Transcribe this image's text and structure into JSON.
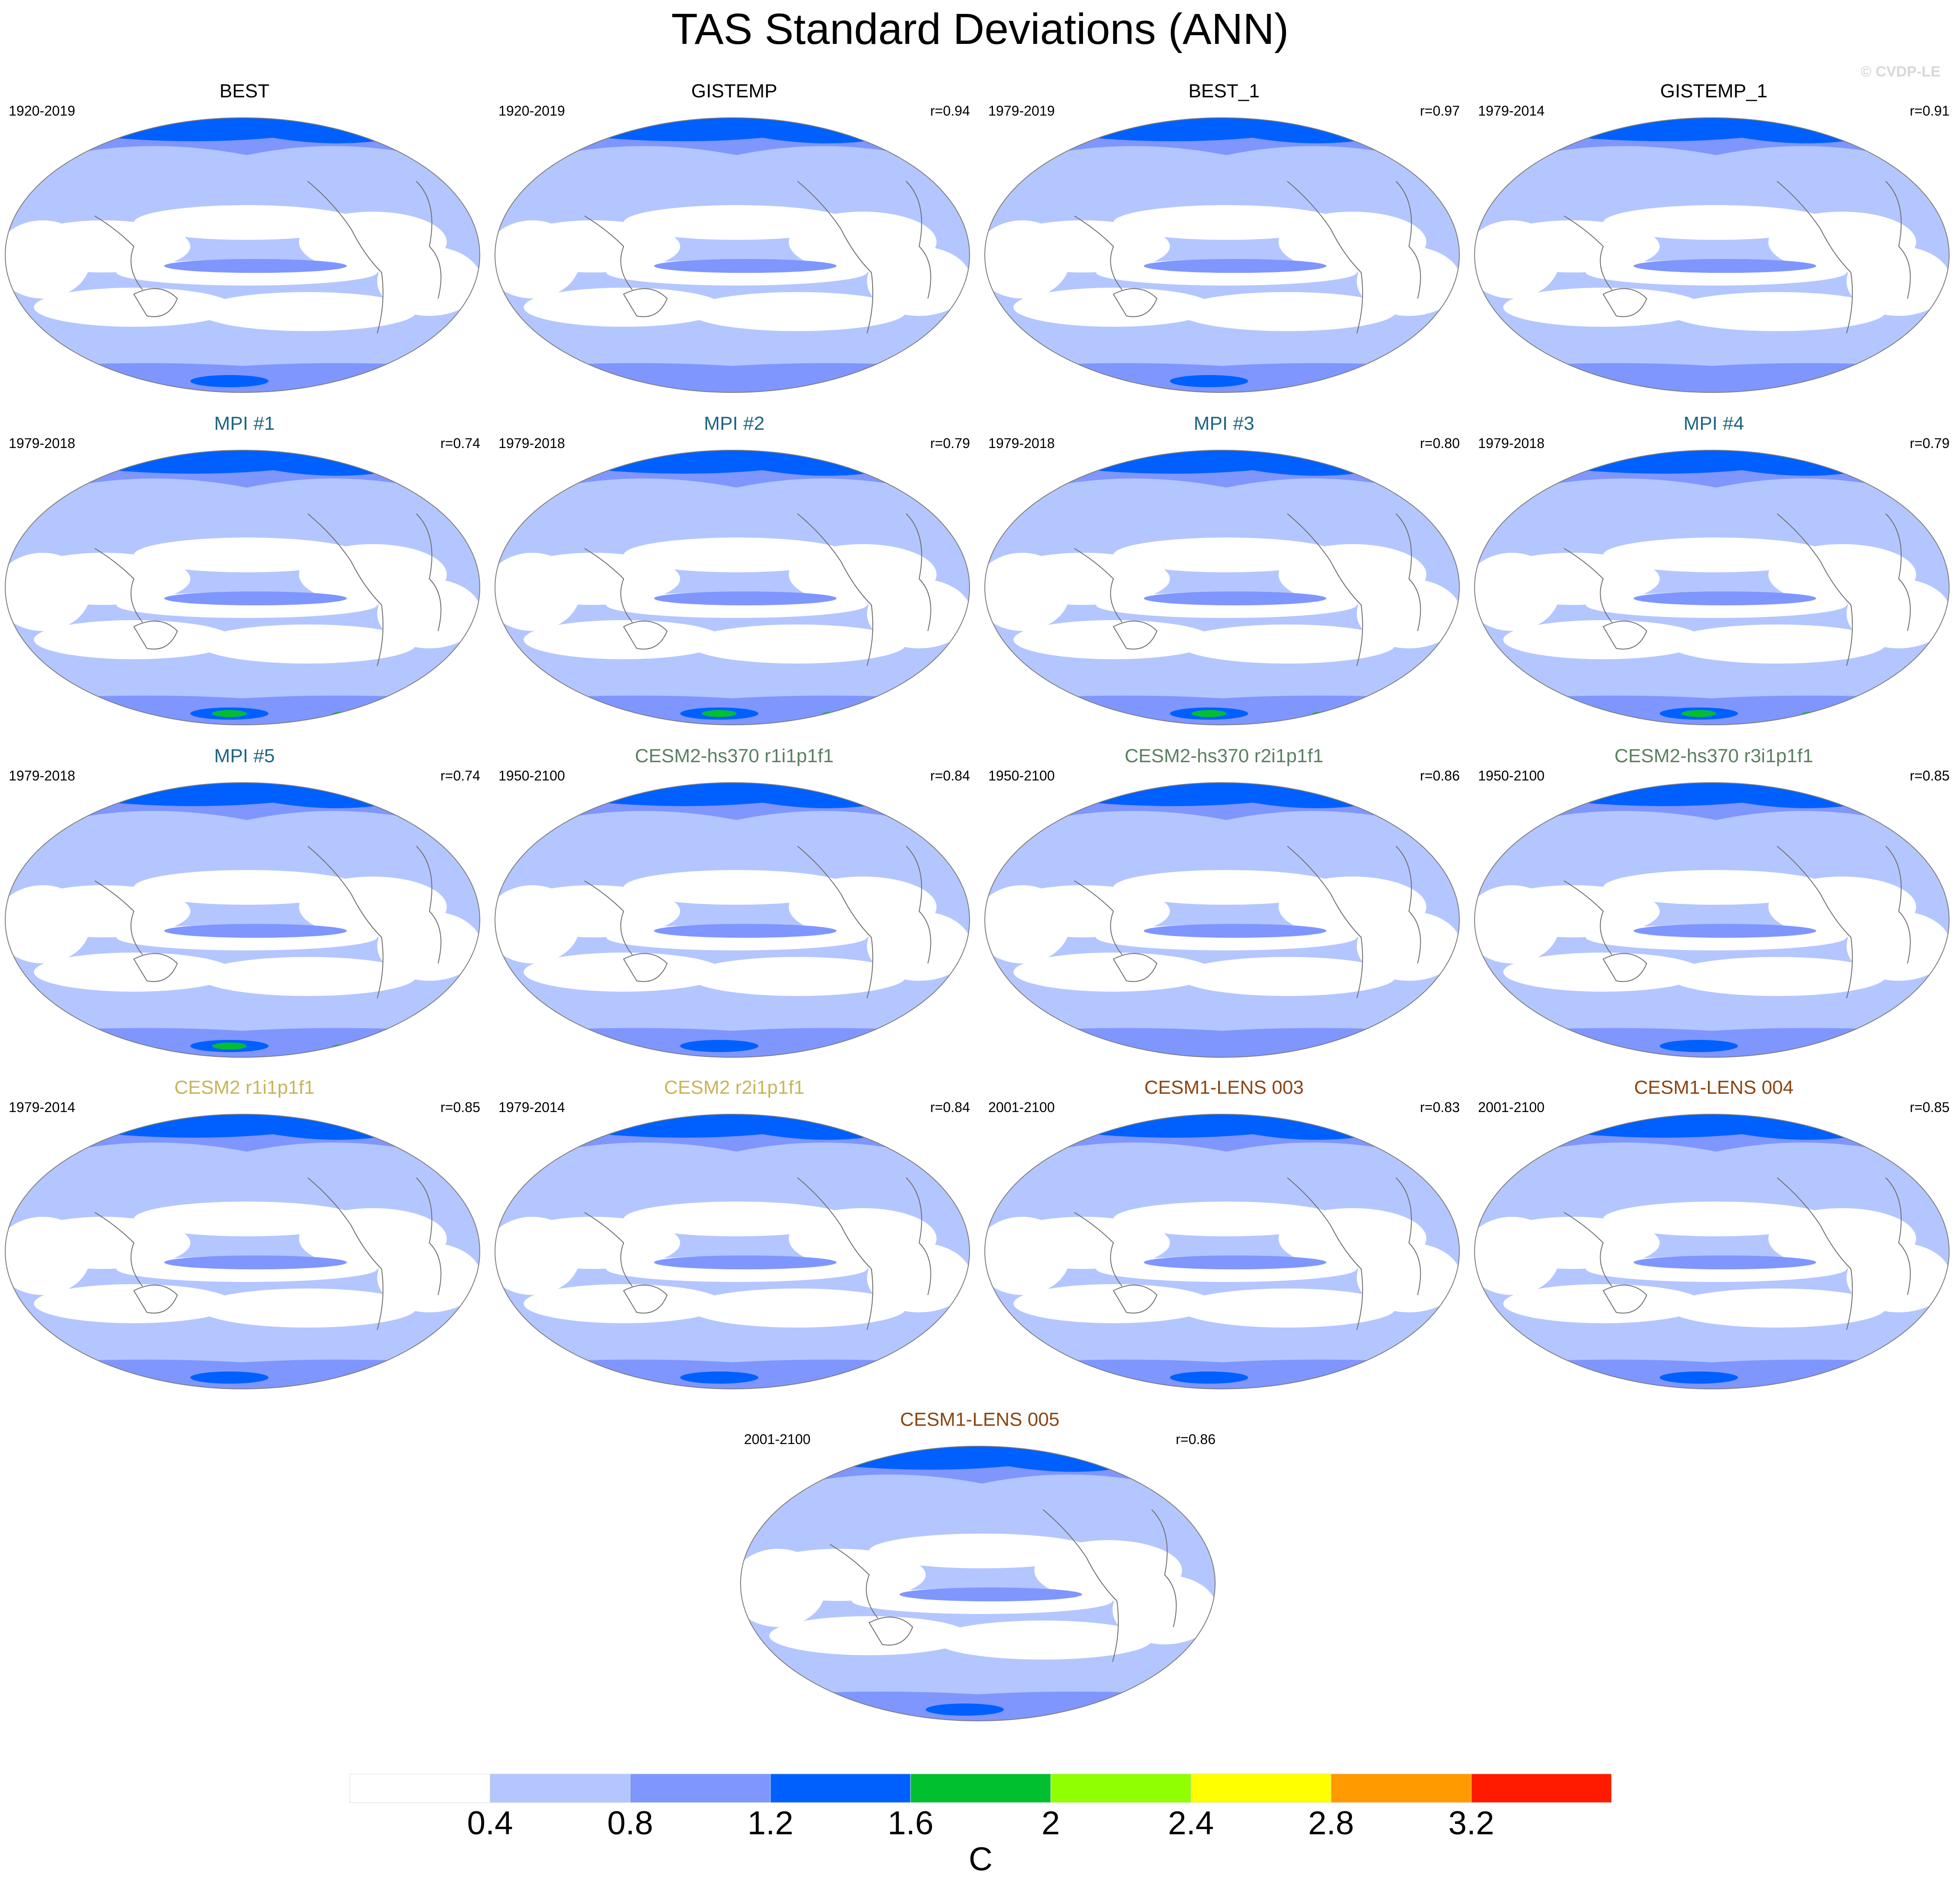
{
  "figure": {
    "title": "TAS Standard Deviations (ANN)",
    "watermark": "© CVDP-LE"
  },
  "colors": {
    "obs_title": "#000000",
    "mpi_title": "#1d6585",
    "cesm2_hs370_title": "#5a8062",
    "cesm2_title": "#c9b45a",
    "cesm1_lens_title": "#8b4513",
    "land_outline": "#6e6e6e",
    "map_border": "#7d7d7d"
  },
  "chart_data": {
    "type": "heatmap",
    "variable": "TAS",
    "statistic": "Standard Deviations",
    "season": "ANN",
    "projection": "Robinson",
    "colorbar": {
      "unit": "C",
      "levels": [
        0.4,
        0.8,
        1.2,
        1.6,
        2,
        2.4,
        2.8,
        3.2
      ],
      "tick_labels": [
        "0.4",
        "0.8",
        "1.2",
        "1.6",
        "2",
        "2.4",
        "2.8",
        "3.2"
      ],
      "colors": [
        "#ffffff",
        "#b4c6ff",
        "#7f96ff",
        "#0060ff",
        "#00c030",
        "#90ff00",
        "#ffff00",
        "#ff9a00",
        "#ff1a00"
      ]
    },
    "panels": [
      {
        "title": "BEST",
        "period": "1920-2019",
        "r": "",
        "group": "obs",
        "polar_peak": 2
      },
      {
        "title": "GISTEMP",
        "period": "1920-2019",
        "r": "r=0.94",
        "group": "obs",
        "polar_peak": 1
      },
      {
        "title": "BEST_1",
        "period": "1979-2019",
        "r": "r=0.97",
        "group": "obs",
        "polar_peak": 2
      },
      {
        "title": "GISTEMP_1",
        "period": "1979-2014",
        "r": "r=0.91",
        "group": "obs",
        "polar_peak": 1
      },
      {
        "title": "MPI #1",
        "period": "1979-2018",
        "r": "r=0.74",
        "group": "mpi",
        "polar_peak": 3
      },
      {
        "title": "MPI #2",
        "period": "1979-2018",
        "r": "r=0.79",
        "group": "mpi",
        "polar_peak": 3
      },
      {
        "title": "MPI #3",
        "period": "1979-2018",
        "r": "r=0.80",
        "group": "mpi",
        "polar_peak": 3
      },
      {
        "title": "MPI #4",
        "period": "1979-2018",
        "r": "r=0.79",
        "group": "mpi",
        "polar_peak": 3
      },
      {
        "title": "MPI #5",
        "period": "1979-2018",
        "r": "r=0.74",
        "group": "mpi",
        "polar_peak": 3
      },
      {
        "title": "CESM2-hs370 r1i1p1f1",
        "period": "1950-2100",
        "r": "r=0.84",
        "group": "cesm2_hs370",
        "polar_peak": 2
      },
      {
        "title": "CESM2-hs370 r2i1p1f1",
        "period": "1950-2100",
        "r": "r=0.86",
        "group": "cesm2_hs370",
        "polar_peak": 1
      },
      {
        "title": "CESM2-hs370 r3i1p1f1",
        "period": "1950-2100",
        "r": "r=0.85",
        "group": "cesm2_hs370",
        "polar_peak": 2
      },
      {
        "title": "CESM2 r1i1p1f1",
        "period": "1979-2014",
        "r": "r=0.85",
        "group": "cesm2",
        "polar_peak": 2
      },
      {
        "title": "CESM2 r2i1p1f1",
        "period": "1979-2014",
        "r": "r=0.84",
        "group": "cesm2",
        "polar_peak": 2
      },
      {
        "title": "CESM1-LENS 003",
        "period": "2001-2100",
        "r": "r=0.83",
        "group": "cesm1_lens",
        "polar_peak": 2
      },
      {
        "title": "CESM1-LENS 004",
        "period": "2001-2100",
        "r": "r=0.85",
        "group": "cesm1_lens",
        "polar_peak": 2
      },
      {
        "title": "CESM1-LENS 005",
        "period": "2001-2100",
        "r": "r=0.86",
        "group": "cesm1_lens",
        "polar_peak": 2
      }
    ]
  }
}
